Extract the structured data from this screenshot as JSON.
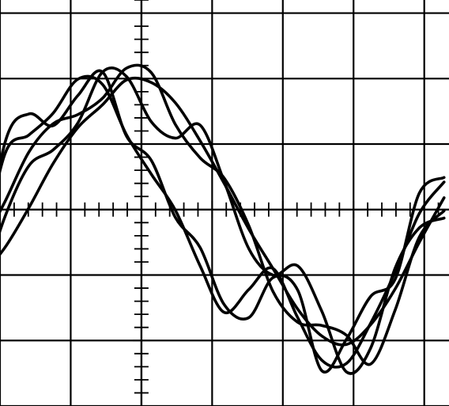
{
  "chart_data": {
    "type": "line",
    "title": "",
    "xlabel": "",
    "ylabel": "",
    "xlim": [
      -2.0,
      4.35
    ],
    "ylim": [
      -3.0,
      3.2
    ],
    "grid": true,
    "minor_ticks": 5,
    "line_color": "#000000",
    "x": [
      -2.28,
      -1.93,
      -1.59,
      -1.25,
      -0.9,
      -0.55,
      -0.21,
      0.14,
      0.48,
      0.83,
      1.17,
      1.52,
      1.86,
      2.21,
      2.55,
      2.9,
      3.24,
      3.59,
      3.93,
      4.28
    ],
    "series": [
      {
        "values": [
          -0.84,
          0.85,
          1.14,
          1.47,
          1.99,
          1.91,
          1.14,
          0.54,
          -0.01,
          -0.86,
          -1.57,
          -1.22,
          -0.9,
          -1.65,
          -2.3,
          -2.35,
          -1.74,
          -0.95,
          -0.06,
          0.42
        ]
      },
      {
        "values": [
          -1.16,
          1.02,
          1.46,
          1.28,
          1.74,
          2.1,
          1.12,
          0.75,
          -0.12,
          -0.58,
          -1.45,
          -1.65,
          -1.04,
          -1.23,
          -2.46,
          -1.98,
          -1.33,
          -1.06,
          0.25,
          0.49
        ]
      },
      {
        "values": [
          -1.04,
          -0.58,
          0.03,
          0.7,
          1.25,
          1.6,
          1.98,
          1.94,
          1.63,
          1.05,
          0.4,
          -0.3,
          -0.9,
          -1.52,
          -1.93,
          -2.06,
          -1.76,
          -1.21,
          -0.5,
          0.18
        ]
      },
      {
        "values": [
          -0.6,
          0.12,
          0.88,
          1.31,
          1.45,
          1.7,
          2.16,
          2.09,
          1.3,
          0.79,
          0.48,
          -0.25,
          -1.25,
          -1.72,
          -1.77,
          -1.92,
          -2.36,
          -1.53,
          -0.42,
          -0.02
        ]
      },
      {
        "values": [
          -1.28,
          -0.11,
          0.67,
          0.91,
          1.32,
          2.1,
          2.03,
          1.34,
          1.09,
          1.29,
          0.43,
          -0.6,
          -1.0,
          -0.86,
          -1.55,
          -2.48,
          -2.12,
          -0.89,
          -0.28,
          -0.13
        ]
      }
    ]
  }
}
